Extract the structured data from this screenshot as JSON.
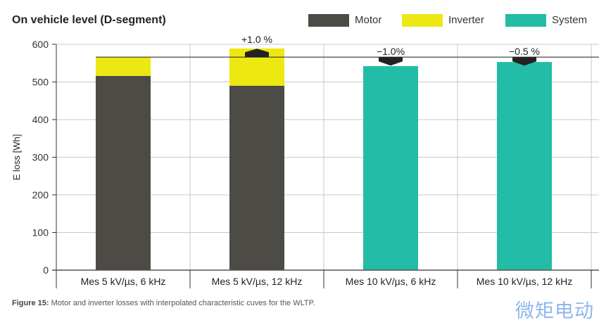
{
  "chart_data": {
    "type": "bar",
    "stacked": true,
    "title": "On vehicle level (D-segment)",
    "ylabel": "E loss [Wh]",
    "xlabel": "",
    "ylim": [
      0,
      600
    ],
    "yticks": [
      0,
      100,
      200,
      300,
      400,
      500,
      600
    ],
    "grid": true,
    "legend_position": "top-right",
    "categories": [
      "Mes 5 kV/µs, 6 kHz",
      "Mes 5 kV/µs, 12 kHz",
      "Mes 10 kV/µs, 6 kHz",
      "Mes 10 kV/µs, 12 kHz"
    ],
    "series": [
      {
        "name": "Motor",
        "color": "#4d4b45",
        "values": [
          516,
          490,
          null,
          null
        ]
      },
      {
        "name": "Inverter",
        "color": "#ede812",
        "values": [
          50,
          99,
          null,
          null
        ]
      },
      {
        "name": "System",
        "color": "#23bca6",
        "values": [
          null,
          null,
          542,
          553
        ]
      }
    ],
    "reference_line": 566,
    "annotations": [
      {
        "category": 1,
        "text": "+1.0 %",
        "direction": "up"
      },
      {
        "category": 2,
        "text": "−1.0%",
        "direction": "down"
      },
      {
        "category": 3,
        "text": "−0.5 %",
        "direction": "down"
      }
    ]
  },
  "caption": {
    "label": "Figure 15:",
    "text": " Motor and inverter losses with interpolated characteristic cuves for the WLTP."
  },
  "watermark": "微矩电动"
}
